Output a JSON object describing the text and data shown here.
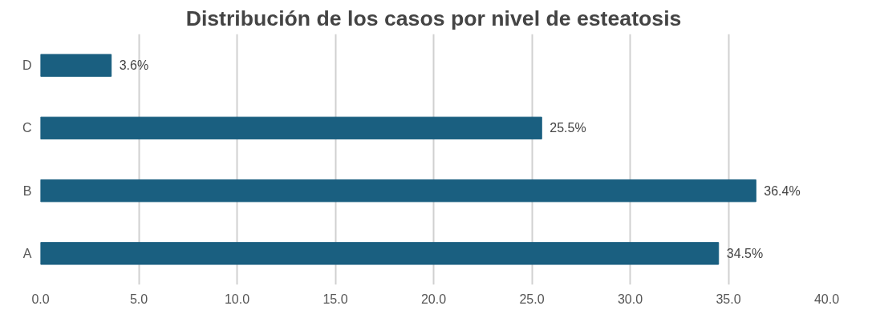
{
  "chart_data": {
    "type": "bar",
    "orientation": "horizontal",
    "title": "Distribución de los casos por nivel de esteatosis",
    "categories": [
      "D",
      "C",
      "B",
      "A"
    ],
    "values": [
      3.6,
      25.5,
      36.4,
      34.5
    ],
    "value_labels": [
      "3.6%",
      "25.5%",
      "36.4%",
      "34.5%"
    ],
    "color": "#1a5f80",
    "xlim": [
      0,
      40
    ],
    "xticks": [
      {
        "value": 0,
        "label": "0.0"
      },
      {
        "value": 5,
        "label": "5.0"
      },
      {
        "value": 10,
        "label": "10.0"
      },
      {
        "value": 15,
        "label": "15.0"
      },
      {
        "value": 20,
        "label": "20.0"
      },
      {
        "value": 25,
        "label": "25.0"
      },
      {
        "value": 30,
        "label": "30.0"
      },
      {
        "value": 35,
        "label": "35.0"
      },
      {
        "value": 40,
        "label": "40.0"
      }
    ],
    "grid": "x"
  }
}
